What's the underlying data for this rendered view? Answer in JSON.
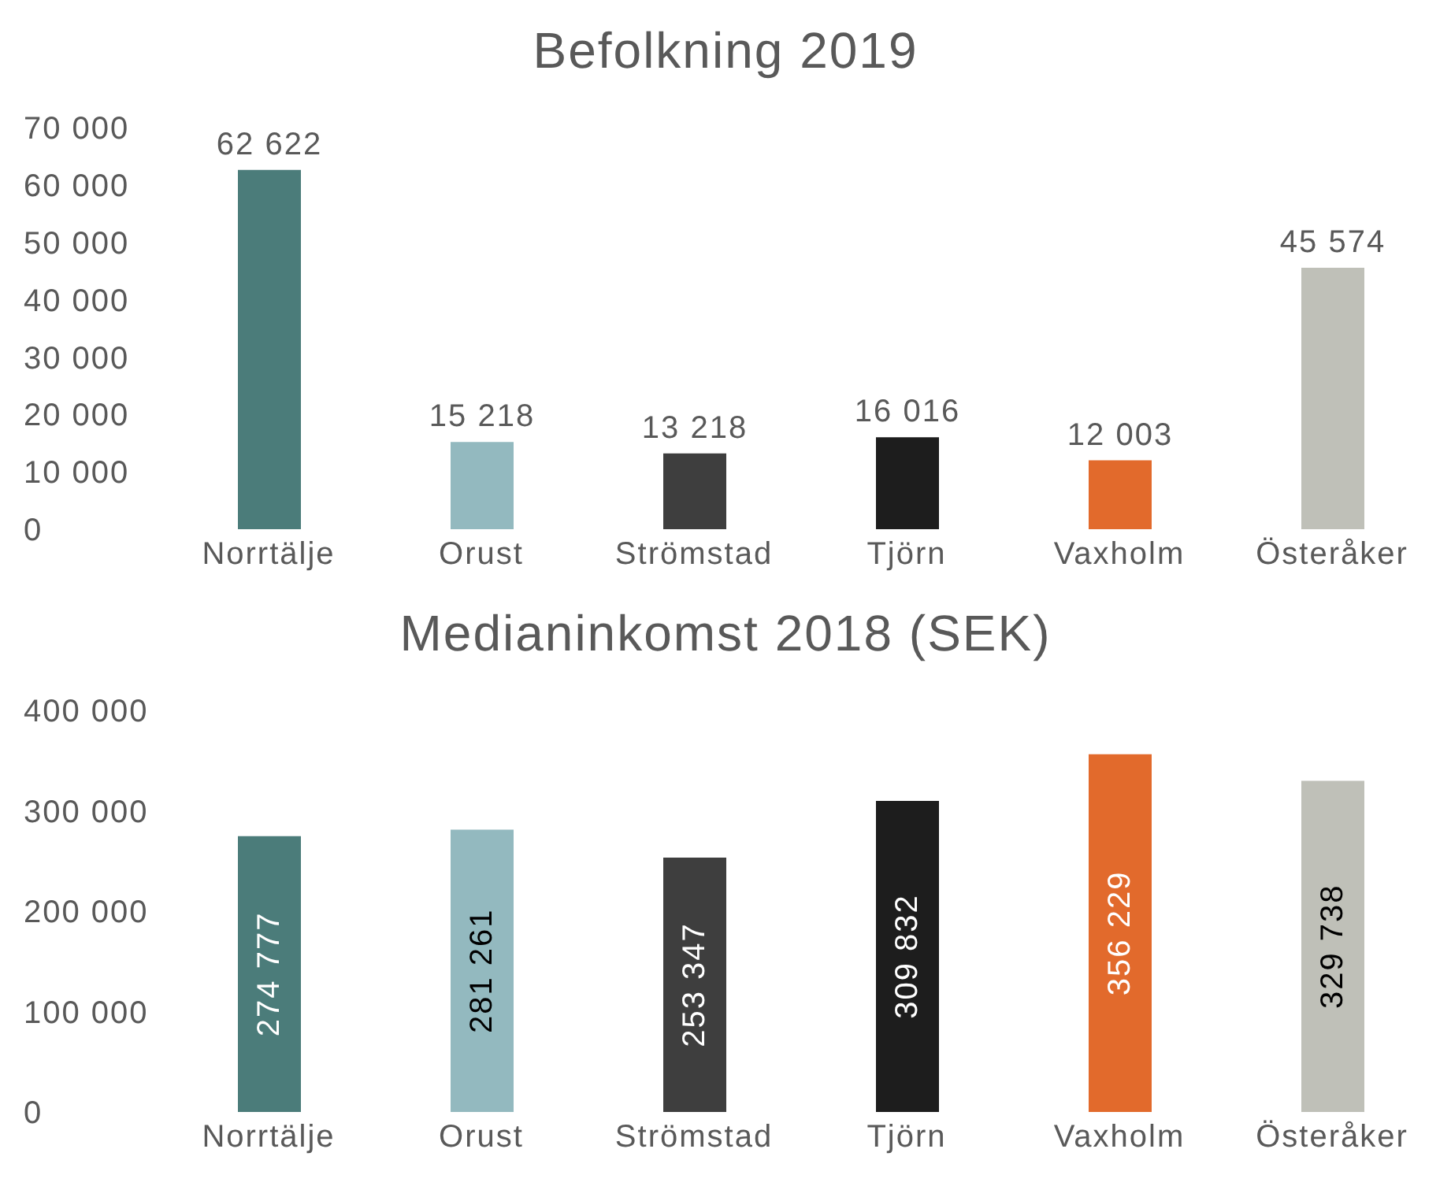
{
  "chart_data": [
    {
      "type": "bar",
      "title": "Befolkning 2019",
      "categories": [
        "Norrtälje",
        "Orust",
        "Strömstad",
        "Tjörn",
        "Vaxholm",
        "Österåker"
      ],
      "values": [
        62622,
        15218,
        13218,
        16016,
        12003,
        45574
      ],
      "colors": [
        "#4b7c7a",
        "#93b9bf",
        "#3e3e3e",
        "#1d1d1d",
        "#e26a2c",
        "#bfc0b8"
      ],
      "value_labels": [
        "62 622",
        "15 218",
        "13 218",
        "16 016",
        "12 003",
        "45 574"
      ],
      "ylim": [
        0,
        70000
      ],
      "yticks": [
        {
          "value": 0,
          "label": "0"
        },
        {
          "value": 10000,
          "label": "10 000"
        },
        {
          "value": 20000,
          "label": "20 000"
        },
        {
          "value": 30000,
          "label": "30 000"
        },
        {
          "value": 40000,
          "label": "40 000"
        },
        {
          "value": 50000,
          "label": "50 000"
        },
        {
          "value": 60000,
          "label": "60 000"
        },
        {
          "value": 70000,
          "label": "70 000"
        }
      ],
      "grid": false,
      "legend": false
    },
    {
      "type": "bar",
      "title": "Medianinkomst 2018 (SEK)",
      "categories": [
        "Norrtälje",
        "Orust",
        "Strömstad",
        "Tjörn",
        "Vaxholm",
        "Österåker"
      ],
      "values": [
        274777,
        281261,
        253347,
        309832,
        356229,
        329738
      ],
      "colors": [
        "#4b7c7a",
        "#93b9bf",
        "#3e3e3e",
        "#1d1d1d",
        "#e26a2c",
        "#bfc0b8"
      ],
      "value_labels": [
        "274 777",
        "281 261",
        "253 347",
        "309 832",
        "356 229",
        "329 738"
      ],
      "ylim": [
        0,
        400000
      ],
      "yticks": [
        {
          "value": 0,
          "label": "0"
        },
        {
          "value": 100000,
          "label": "100 000"
        },
        {
          "value": 200000,
          "label": "200 000"
        },
        {
          "value": 300000,
          "label": "300 000"
        },
        {
          "value": 400000,
          "label": "400 000"
        }
      ],
      "grid": false,
      "legend": false
    }
  ]
}
